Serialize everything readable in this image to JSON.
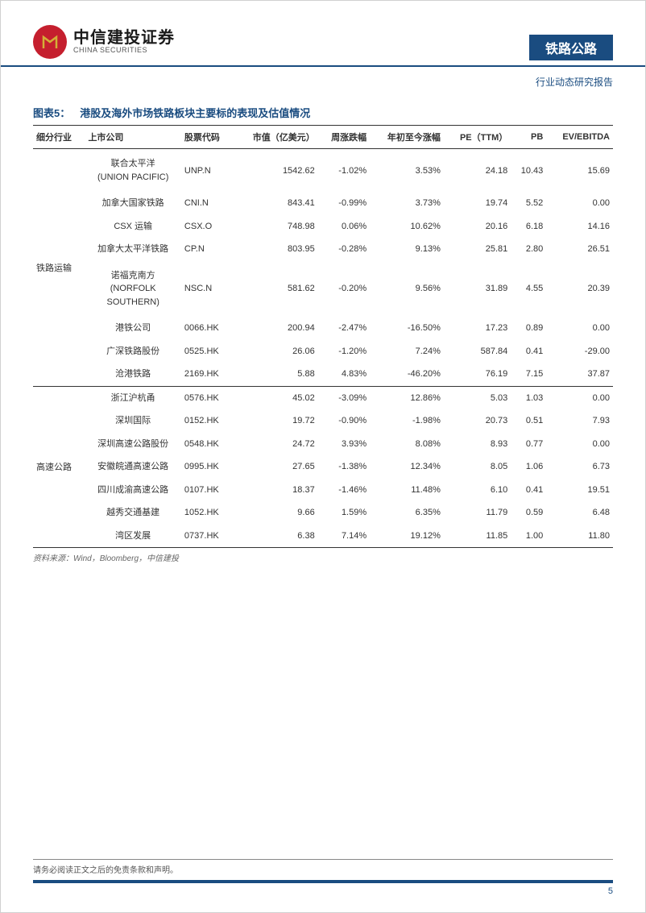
{
  "header": {
    "logo_cn": "中信建投证券",
    "logo_en": "CHINA SECURITIES",
    "sector": "铁路公路",
    "report_type": "行业动态研究报告"
  },
  "table": {
    "title_prefix": "图表5：",
    "title": "港股及海外市场铁路板块主要标的表现及估值情况",
    "columns": [
      "细分行业",
      "上市公司",
      "股票代码",
      "市值（亿美元）",
      "周涨跌幅",
      "年初至今涨幅",
      "PE（TTM）",
      "PB",
      "EV/EBITDA"
    ],
    "cat1": "铁路运输",
    "cat2": "高速公路",
    "rows1": [
      {
        "company": "联合太平洋\n(UNION PACIFIC)",
        "code": "UNP.N",
        "mcap": "1542.62",
        "wchg": "-1.02%",
        "ychg": "3.53%",
        "pe": "24.18",
        "pb": "10.43",
        "ev": "15.69"
      },
      {
        "company": "加拿大国家铁路",
        "code": "CNI.N",
        "mcap": "843.41",
        "wchg": "-0.99%",
        "ychg": "3.73%",
        "pe": "19.74",
        "pb": "5.52",
        "ev": "0.00"
      },
      {
        "company": "CSX 运输",
        "code": "CSX.O",
        "mcap": "748.98",
        "wchg": "0.06%",
        "ychg": "10.62%",
        "pe": "20.16",
        "pb": "6.18",
        "ev": "14.16"
      },
      {
        "company": "加拿大太平洋铁路",
        "code": "CP.N",
        "mcap": "803.95",
        "wchg": "-0.28%",
        "ychg": "9.13%",
        "pe": "25.81",
        "pb": "2.80",
        "ev": "26.51"
      },
      {
        "company": "诺福克南方\n(NORFOLK\nSOUTHERN)",
        "code": "NSC.N",
        "mcap": "581.62",
        "wchg": "-0.20%",
        "ychg": "9.56%",
        "pe": "31.89",
        "pb": "4.55",
        "ev": "20.39"
      },
      {
        "company": "港铁公司",
        "code": "0066.HK",
        "mcap": "200.94",
        "wchg": "-2.47%",
        "ychg": "-16.50%",
        "pe": "17.23",
        "pb": "0.89",
        "ev": "0.00"
      },
      {
        "company": "广深铁路股份",
        "code": "0525.HK",
        "mcap": "26.06",
        "wchg": "-1.20%",
        "ychg": "7.24%",
        "pe": "587.84",
        "pb": "0.41",
        "ev": "-29.00"
      },
      {
        "company": "沧港铁路",
        "code": "2169.HK",
        "mcap": "5.88",
        "wchg": "4.83%",
        "ychg": "-46.20%",
        "pe": "76.19",
        "pb": "7.15",
        "ev": "37.87"
      }
    ],
    "rows2": [
      {
        "company": "浙江沪杭甬",
        "code": "0576.HK",
        "mcap": "45.02",
        "wchg": "-3.09%",
        "ychg": "12.86%",
        "pe": "5.03",
        "pb": "1.03",
        "ev": "0.00"
      },
      {
        "company": "深圳国际",
        "code": "0152.HK",
        "mcap": "19.72",
        "wchg": "-0.90%",
        "ychg": "-1.98%",
        "pe": "20.73",
        "pb": "0.51",
        "ev": "7.93"
      },
      {
        "company": "深圳高速公路股份",
        "code": "0548.HK",
        "mcap": "24.72",
        "wchg": "3.93%",
        "ychg": "8.08%",
        "pe": "8.93",
        "pb": "0.77",
        "ev": "0.00"
      },
      {
        "company": "安徽皖通高速公路",
        "code": "0995.HK",
        "mcap": "27.65",
        "wchg": "-1.38%",
        "ychg": "12.34%",
        "pe": "8.05",
        "pb": "1.06",
        "ev": "6.73"
      },
      {
        "company": "四川成渝高速公路",
        "code": "0107.HK",
        "mcap": "18.37",
        "wchg": "-1.46%",
        "ychg": "11.48%",
        "pe": "6.10",
        "pb": "0.41",
        "ev": "19.51"
      },
      {
        "company": "越秀交通基建",
        "code": "1052.HK",
        "mcap": "9.66",
        "wchg": "1.59%",
        "ychg": "6.35%",
        "pe": "11.79",
        "pb": "0.59",
        "ev": "6.48"
      },
      {
        "company": "湾区发展",
        "code": "0737.HK",
        "mcap": "6.38",
        "wchg": "7.14%",
        "ychg": "19.12%",
        "pe": "11.85",
        "pb": "1.00",
        "ev": "11.80"
      }
    ],
    "source": "资料来源：Wind，Bloomberg，中信建投"
  },
  "footer": {
    "disclaimer": "请务必阅读正文之后的免责条款和声明。",
    "page": "5"
  }
}
